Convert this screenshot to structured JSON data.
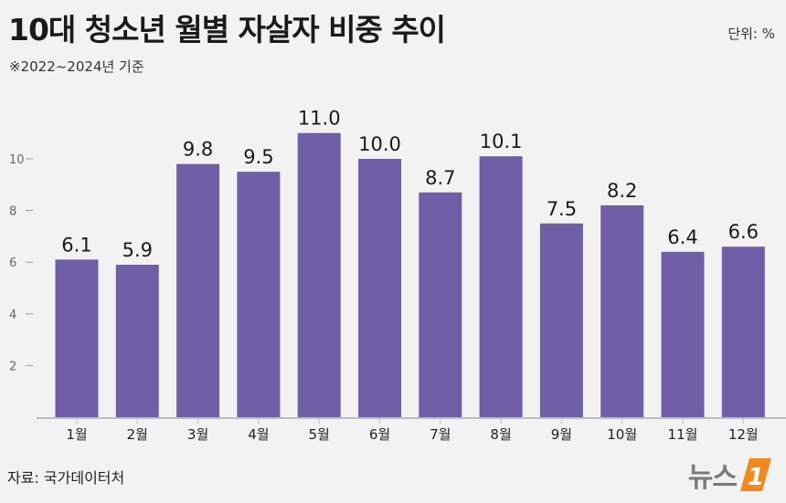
{
  "header": {
    "title": "10대 청소년 월별 자살자 비중 추이",
    "unit": "단위: %",
    "subtitle": "※2022~2024년 기준"
  },
  "footer": {
    "source": "자료: 국가데이터처",
    "logo_text": "뉴스",
    "logo_mark": "1"
  },
  "colors": {
    "bar": "#6e5fa6",
    "axis": "#bdbdbd",
    "logo_orange": "#f08a1e"
  },
  "chart_data": {
    "type": "bar",
    "title": "10대 청소년 월별 자살자 비중 추이",
    "categories": [
      "1월",
      "2월",
      "3월",
      "4월",
      "5월",
      "6월",
      "7월",
      "8월",
      "9월",
      "10월",
      "11월",
      "12월"
    ],
    "values": [
      6.1,
      5.9,
      9.8,
      9.5,
      11.0,
      10.0,
      8.7,
      10.1,
      7.5,
      8.2,
      6.4,
      6.6
    ],
    "value_labels": [
      "6.1",
      "5.9",
      "9.8",
      "9.5",
      "11.0",
      "10.0",
      "8.7",
      "10.1",
      "7.5",
      "8.2",
      "6.4",
      "6.6"
    ],
    "yticks": [
      2,
      4,
      6,
      8,
      10
    ],
    "ylim": [
      0,
      11
    ],
    "xlabel": "",
    "ylabel": "",
    "grid": false,
    "legend": "none"
  }
}
